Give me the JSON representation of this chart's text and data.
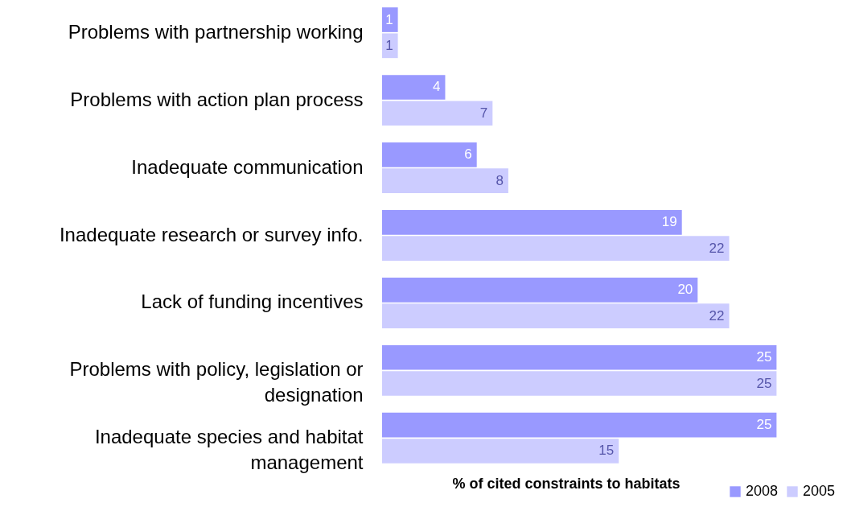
{
  "chart_data": {
    "type": "bar",
    "orientation": "horizontal",
    "xlabel": "% of cited constraints to habitats",
    "categories": [
      "Problems with partnership working",
      "Problems with action plan process",
      "Inadequate communication",
      "Inadequate research or survey info.",
      "Lack of funding incentives",
      "Problems with policy, legislation or designation",
      "Inadequate species and habitat management"
    ],
    "series": [
      {
        "name": "2008",
        "color": "#9999ff",
        "values": [
          1,
          4,
          6,
          19,
          20,
          25,
          25
        ]
      },
      {
        "name": "2005",
        "color": "#ccccff",
        "values": [
          1,
          7,
          8,
          22,
          22,
          25,
          15
        ]
      }
    ],
    "data_labels": true,
    "legend": "bottom right",
    "grid": false
  }
}
